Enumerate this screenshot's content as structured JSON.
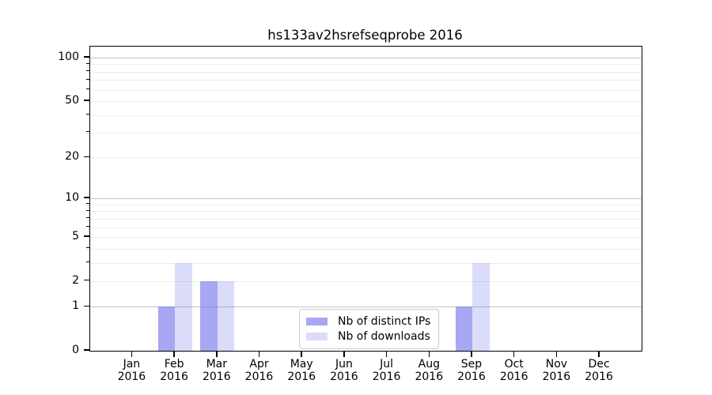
{
  "chart_data": {
    "type": "bar",
    "title": "hs133av2hsrefseqprobe 2016",
    "categories": [
      "Jan 2016",
      "Feb 2016",
      "Mar 2016",
      "Apr 2016",
      "May 2016",
      "Jun 2016",
      "Jul 2016",
      "Aug 2016",
      "Sep 2016",
      "Oct 2016",
      "Nov 2016",
      "Dec 2016"
    ],
    "series": [
      {
        "name": "Nb of distinct IPs",
        "color": "#7171eb",
        "opacity": 0.62,
        "values": [
          0,
          1,
          2,
          0,
          0,
          0,
          0,
          0,
          1,
          0,
          0,
          0
        ]
      },
      {
        "name": "Nb of downloads",
        "color": "#7171eb",
        "opacity": 0.25,
        "values": [
          0,
          3,
          2,
          0,
          0,
          0,
          0,
          0,
          3,
          0,
          0,
          0
        ]
      }
    ],
    "xlabel": "",
    "ylabel": "",
    "yscale": "log1p",
    "ylim": [
      0,
      118
    ],
    "yticks": [
      0,
      1,
      2,
      5,
      10,
      20,
      50,
      100
    ],
    "minor_yticks": [
      3,
      4,
      6,
      7,
      8,
      9,
      30,
      40,
      60,
      70,
      80,
      90
    ],
    "emphasized_gridlines": [
      1,
      10,
      100
    ],
    "grid": true,
    "legend_position": "inside lower center"
  },
  "colors": {
    "background": "#ffffff",
    "spine": "#000000",
    "major_grid": "#c3c3c3",
    "minor_grid": "#ececec",
    "text": "#000000"
  }
}
